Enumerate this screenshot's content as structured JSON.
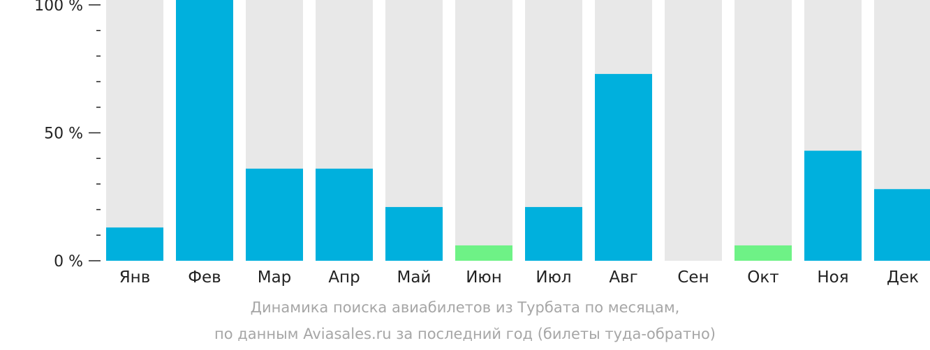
{
  "chart_data": {
    "type": "bar",
    "categories": [
      "Янв",
      "Фев",
      "Мар",
      "Апр",
      "Май",
      "Июн",
      "Июл",
      "Авг",
      "Сен",
      "Окт",
      "Ноя",
      "Дек"
    ],
    "values": [
      13,
      100,
      36,
      36,
      21,
      6,
      21,
      73,
      0,
      6,
      43,
      28
    ],
    "highlight": [
      false,
      false,
      false,
      false,
      false,
      true,
      false,
      false,
      false,
      true,
      false,
      false
    ],
    "ylim": [
      0,
      100
    ],
    "ytick_labels": [
      "0 %",
      "50 %",
      "100 %"
    ],
    "ytick_values": [
      0,
      50,
      100
    ],
    "minor_tick_step": 10,
    "grid": false,
    "colors": {
      "bar": "#00b0dd",
      "bar_highlight": "#6ef286",
      "bar_background": "#e8e8e8",
      "axis": "#222222",
      "tick_label": "#222222",
      "caption": "#a6a6a6"
    }
  },
  "caption": {
    "line1": "Динамика поиска авиабилетов из Турбата по месяцам,",
    "line2": "по данным Aviasales.ru за последний год (билеты туда-обратно)"
  }
}
